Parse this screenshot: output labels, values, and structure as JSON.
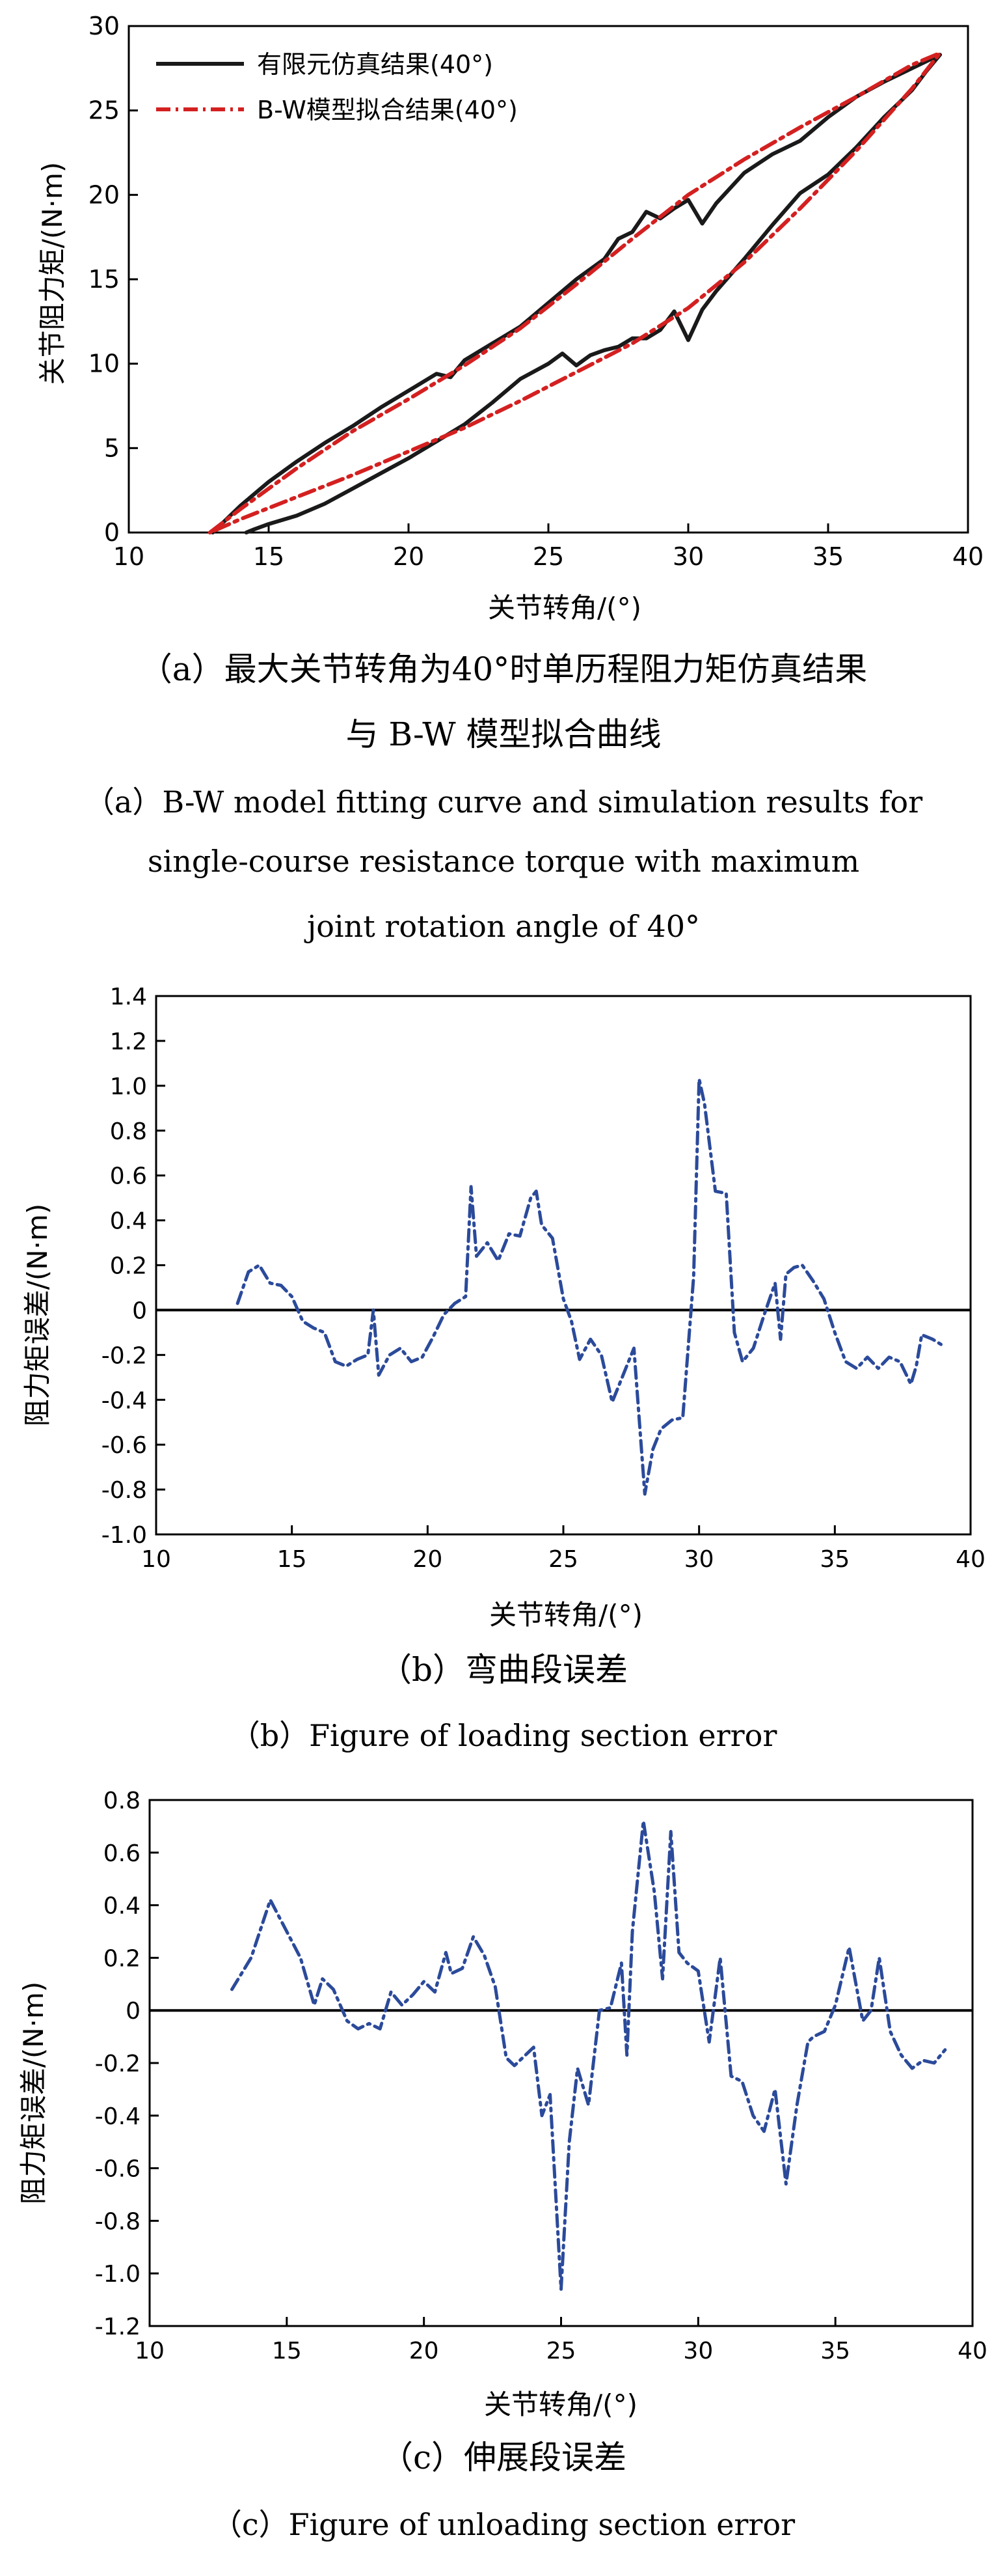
{
  "colors": {
    "sim": "#1a1a1a",
    "fit": "#d42020",
    "err": "#2b4a9a",
    "axis": "#000000"
  },
  "captions": {
    "a_zh_1": "（a）最大关节转角为40°时单历程阻力矩仿真结果",
    "a_zh_2": "与 B-W 模型拟合曲线",
    "a_en_1": "（a）B-W model fitting curve and simulation results for",
    "a_en_2": "single-course resistance torque with maximum",
    "a_en_3": "joint rotation angle of 40°",
    "b_zh": "（b）弯曲段误差",
    "b_en": "（b）Figure of loading section error",
    "c_zh": "（c）伸展段误差",
    "c_en": "（c）Figure of unloading section error"
  },
  "chart_data": [
    {
      "id": "a",
      "type": "line",
      "xlabel": "关节转角/(°)",
      "ylabel": "关节阻力矩/(N·m)",
      "xlim": [
        10,
        40
      ],
      "ylim": [
        0,
        30
      ],
      "xticks": [
        "10",
        "15",
        "20",
        "25",
        "30",
        "35",
        "40"
      ],
      "yticks": [
        "0",
        "5",
        "10",
        "15",
        "20",
        "25",
        "30"
      ],
      "legend": "top-left",
      "series": [
        {
          "name": "有限元仿真结果(40°)",
          "style": "solid",
          "x": [
            13,
            14,
            15,
            16,
            17,
            18,
            19,
            20,
            21,
            21.5,
            22,
            23,
            24,
            25,
            26,
            27,
            27.5,
            28,
            28.5,
            29,
            29.5,
            30,
            30.5,
            31,
            32,
            33,
            34,
            35,
            36,
            37,
            38,
            39,
            38.5,
            38,
            37,
            36,
            35,
            34,
            33,
            32,
            31,
            30.5,
            30,
            29.5,
            29,
            28.5,
            28,
            27.5,
            27,
            26.5,
            26,
            25.5,
            25,
            24,
            23,
            22,
            21,
            20,
            19,
            18,
            17,
            16,
            15,
            14.5,
            14.2
          ],
          "y": [
            0,
            1.6,
            3.0,
            4.2,
            5.3,
            6.3,
            7.4,
            8.4,
            9.4,
            9.2,
            10.2,
            11.2,
            12.2,
            13.6,
            15.0,
            16.2,
            17.4,
            17.8,
            19.0,
            18.6,
            19.2,
            19.7,
            18.3,
            19.5,
            21.3,
            22.4,
            23.2,
            24.6,
            25.8,
            26.7,
            27.5,
            28.3,
            27.3,
            26.2,
            24.6,
            22.8,
            21.2,
            20.1,
            18.2,
            16.2,
            14.3,
            13.2,
            11.4,
            13.1,
            12.0,
            11.5,
            11.5,
            11.0,
            10.8,
            10.5,
            9.9,
            10.6,
            10.0,
            9.1,
            7.7,
            6.4,
            5.4,
            4.4,
            3.5,
            2.6,
            1.7,
            1.0,
            0.5,
            0.2,
            0
          ],
          "unit": "N·m"
        },
        {
          "name": "B-W模型拟合结果(40°)",
          "style": "dashdot",
          "x": [
            12.9,
            14,
            16,
            18,
            20,
            22,
            24,
            26,
            28,
            30,
            32,
            34,
            36,
            38,
            39,
            38,
            36,
            34,
            32,
            30,
            28,
            26,
            24,
            22,
            20,
            18,
            16,
            14,
            12.9
          ],
          "y": [
            0,
            1.4,
            3.8,
            6.0,
            7.9,
            9.9,
            12.1,
            14.7,
            17.4,
            20.0,
            22.1,
            24.0,
            25.8,
            27.7,
            28.4,
            26.3,
            22.6,
            19.2,
            16.0,
            13.3,
            11.2,
            9.5,
            7.8,
            6.2,
            4.8,
            3.4,
            2.1,
            0.8,
            0
          ]
        }
      ]
    },
    {
      "id": "b",
      "type": "line",
      "xlabel": "关节转角/(°)",
      "ylabel": "阻力矩误差/(N·m)",
      "xlim": [
        10,
        40
      ],
      "ylim": [
        -1.0,
        1.4
      ],
      "xticks": [
        "10",
        "15",
        "20",
        "25",
        "30",
        "35",
        "40"
      ],
      "yticks": [
        "-1.0",
        "-0.8",
        "-0.6",
        "-0.4",
        "-0.2",
        "0",
        "0.2",
        "0.4",
        "0.6",
        "0.8",
        "1.0",
        "1.2",
        "1.4"
      ],
      "series": [
        {
          "style": "dashdot",
          "x": [
            13,
            13.4,
            13.8,
            14.2,
            14.6,
            15,
            15.4,
            15.8,
            16.2,
            16.6,
            17,
            17.4,
            17.8,
            18,
            18.2,
            18.6,
            19,
            19.4,
            19.8,
            20.2,
            20.6,
            21,
            21.4,
            21.6,
            21.8,
            22.2,
            22.6,
            23,
            23.4,
            23.8,
            24,
            24.2,
            24.6,
            25,
            25.3,
            25.6,
            26,
            26.4,
            26.8,
            27.2,
            27.6,
            28,
            28.3,
            28.6,
            29,
            29.4,
            29.8,
            30,
            30.2,
            30.6,
            31,
            31.3,
            31.6,
            32,
            32.4,
            32.8,
            33,
            33.2,
            33.5,
            33.8,
            34.2,
            34.6,
            35,
            35.4,
            35.8,
            36.2,
            36.6,
            37,
            37.4,
            37.8,
            38,
            38.2,
            38.6,
            39
          ],
          "y": [
            0.03,
            0.17,
            0.2,
            0.12,
            0.11,
            0.06,
            -0.05,
            -0.08,
            -0.1,
            -0.23,
            -0.25,
            -0.22,
            -0.2,
            0.0,
            -0.29,
            -0.2,
            -0.17,
            -0.23,
            -0.21,
            -0.12,
            -0.02,
            0.03,
            0.06,
            0.55,
            0.24,
            0.3,
            0.22,
            0.34,
            0.33,
            0.5,
            0.53,
            0.38,
            0.32,
            0.05,
            -0.05,
            -0.22,
            -0.13,
            -0.2,
            -0.41,
            -0.29,
            -0.17,
            -0.82,
            -0.62,
            -0.53,
            -0.49,
            -0.48,
            0.15,
            1.03,
            0.92,
            0.53,
            0.52,
            -0.1,
            -0.23,
            -0.17,
            -0.02,
            0.12,
            -0.13,
            0.16,
            0.19,
            0.2,
            0.13,
            0.05,
            -0.1,
            -0.23,
            -0.26,
            -0.21,
            -0.26,
            -0.21,
            -0.23,
            -0.33,
            -0.25,
            -0.11,
            -0.13,
            -0.16
          ],
          "unit": "N·m"
        }
      ]
    },
    {
      "id": "c",
      "type": "line",
      "xlabel": "关节转角/(°)",
      "ylabel": "阻力矩误差/(N·m)",
      "xlim": [
        10,
        40
      ],
      "ylim": [
        -1.2,
        0.8
      ],
      "xticks": [
        "10",
        "15",
        "20",
        "25",
        "30",
        "35",
        "40"
      ],
      "yticks": [
        "-1.2",
        "-1.0",
        "-0.8",
        "-0.6",
        "-0.4",
        "-0.2",
        "0",
        "0.2",
        "0.4",
        "0.6",
        "0.8"
      ],
      "series": [
        {
          "style": "dashdot",
          "x": [
            13,
            13.7,
            14.4,
            15,
            15.5,
            16,
            16.3,
            16.7,
            17.2,
            17.6,
            18,
            18.4,
            18.8,
            19.2,
            19.6,
            20,
            20.4,
            20.8,
            21,
            21.4,
            21.8,
            22.2,
            22.6,
            23,
            23.3,
            23.6,
            24,
            24.3,
            24.6,
            25,
            25.3,
            25.6,
            26,
            26.4,
            26.8,
            27.2,
            27.4,
            27.6,
            28,
            28.4,
            28.7,
            29,
            29.3,
            29.6,
            30,
            30.4,
            30.8,
            31.2,
            31.6,
            32,
            32.4,
            32.8,
            33.2,
            33.6,
            34,
            34.2,
            34.6,
            35,
            35.5,
            36,
            36.3,
            36.6,
            37,
            37.4,
            37.8,
            38.2,
            38.6,
            39
          ],
          "y": [
            0.08,
            0.2,
            0.42,
            0.3,
            0.2,
            0.02,
            0.12,
            0.08,
            -0.04,
            -0.07,
            -0.05,
            -0.07,
            0.07,
            0.02,
            0.06,
            0.11,
            0.07,
            0.22,
            0.14,
            0.16,
            0.28,
            0.21,
            0.09,
            -0.18,
            -0.21,
            -0.18,
            -0.14,
            -0.4,
            -0.32,
            -1.06,
            -0.5,
            -0.22,
            -0.36,
            0.0,
            0.01,
            0.18,
            -0.17,
            0.3,
            0.72,
            0.45,
            0.12,
            0.68,
            0.22,
            0.18,
            0.15,
            -0.12,
            0.2,
            -0.25,
            -0.27,
            -0.4,
            -0.46,
            -0.3,
            -0.66,
            -0.36,
            -0.12,
            -0.1,
            -0.08,
            0.02,
            0.24,
            -0.04,
            0.0,
            0.2,
            -0.08,
            -0.17,
            -0.22,
            -0.19,
            -0.2,
            -0.15
          ],
          "unit": "N·m"
        }
      ]
    }
  ]
}
